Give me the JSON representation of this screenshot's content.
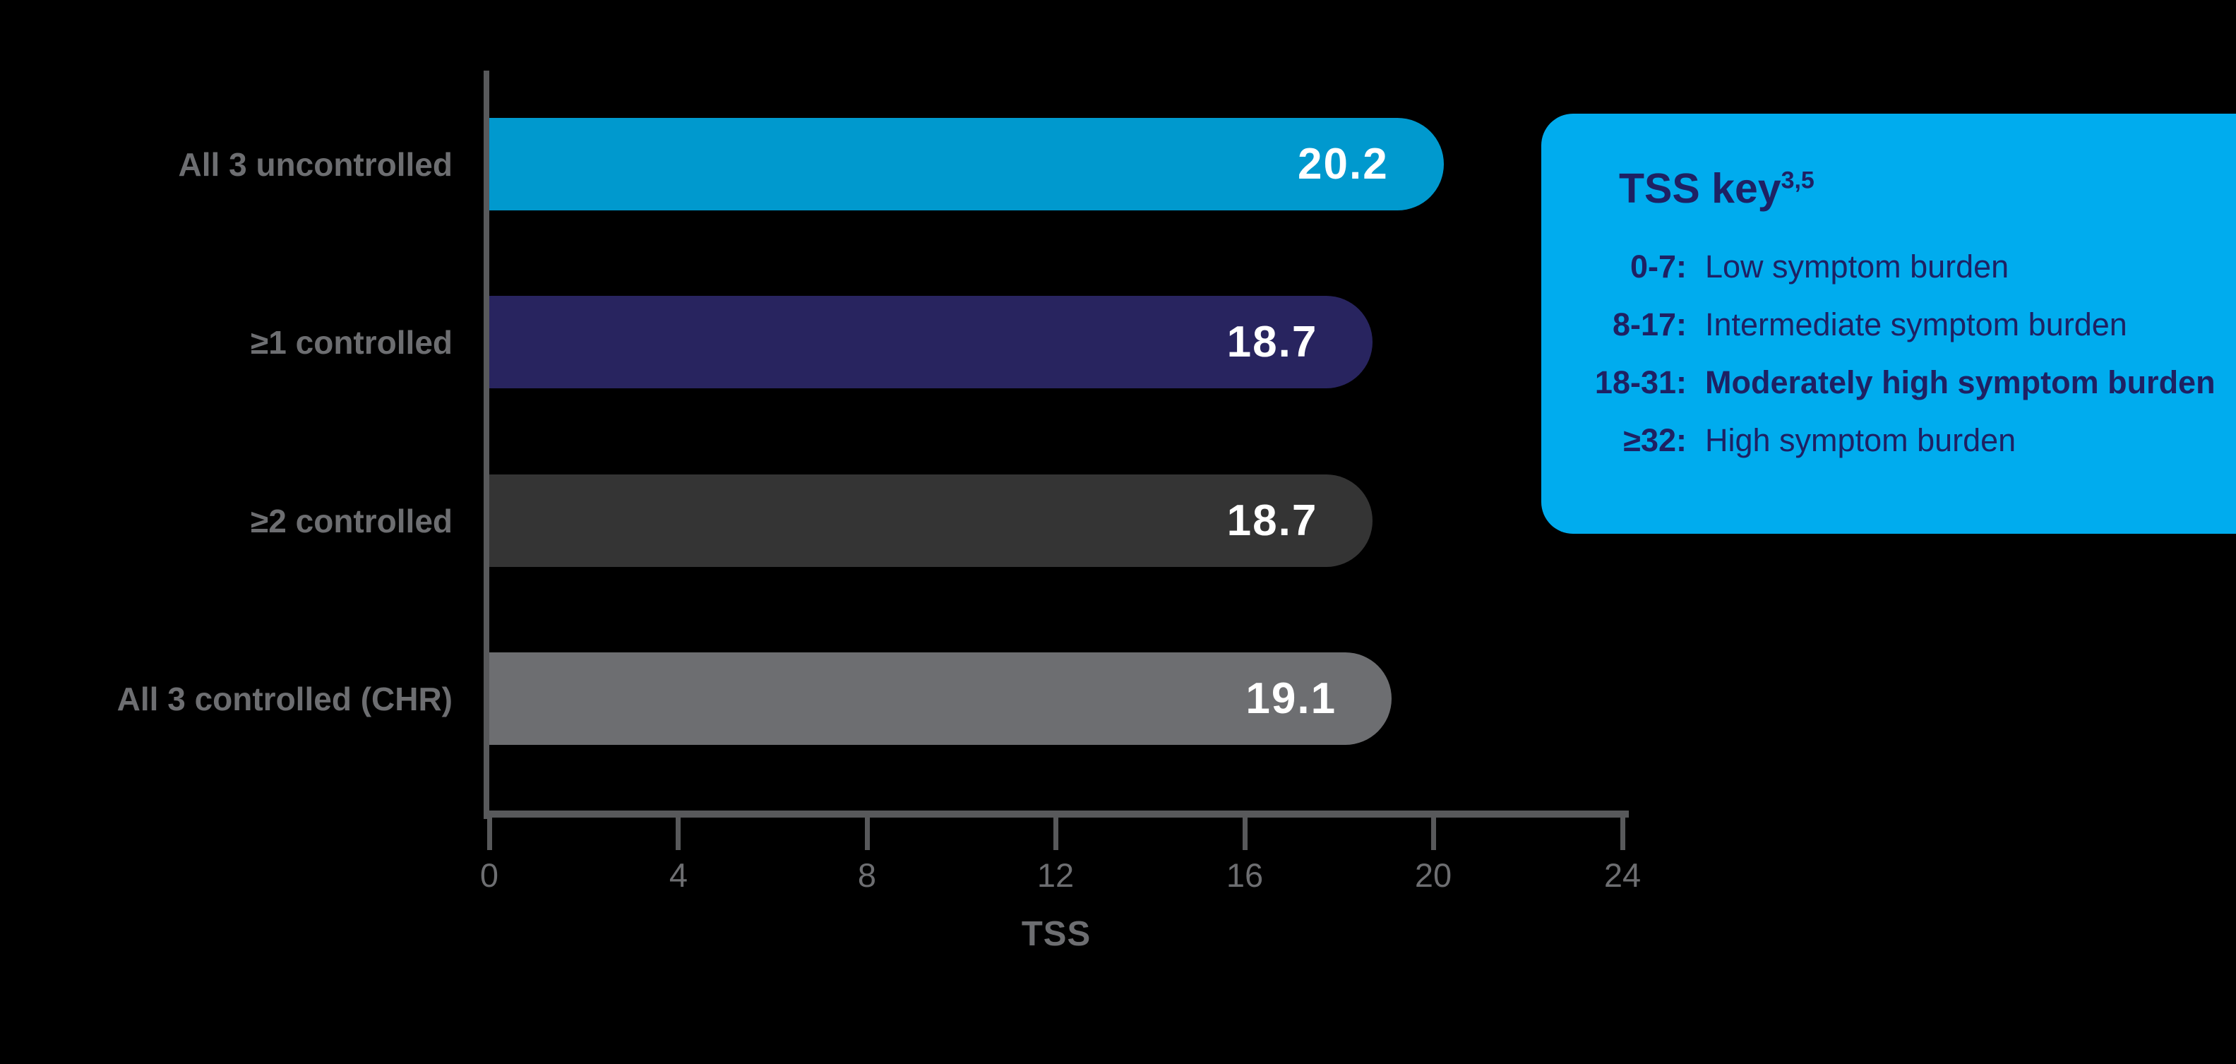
{
  "chart_data": {
    "type": "bar",
    "orientation": "horizontal",
    "xlabel": "TSS",
    "xlim": [
      0,
      24
    ],
    "x_ticks": [
      "0",
      "4",
      "8",
      "12",
      "16",
      "20",
      "24"
    ],
    "grid": false,
    "bars": [
      {
        "label": "All 3 uncontrolled",
        "value": 20.2,
        "value_label": "20.2",
        "color": "#0099CE"
      },
      {
        "label": "≥1 controlled",
        "value": 18.7,
        "value_label": "18.7",
        "color": "#28245F"
      },
      {
        "label": "≥2 controlled",
        "value": 18.7,
        "value_label": "18.7",
        "color": "#343434"
      },
      {
        "label": "All 3 controlled (CHR)",
        "value": 19.1,
        "value_label": "19.1",
        "color": "#6D6E71"
      }
    ]
  },
  "legend": {
    "title": "TSS key",
    "title_superscript": "3,5",
    "background": "#00ACEE",
    "text_color": "#1E2163",
    "items": [
      {
        "range": "0-7:",
        "description": "Low symptom burden",
        "bold": false
      },
      {
        "range": "8-17:",
        "description": "Intermediate symptom burden",
        "bold": false
      },
      {
        "range": "18-31:",
        "description": "Moderately high symptom burden",
        "bold": true
      },
      {
        "range": "≥32:",
        "description": "High symptom burden",
        "bold": false
      }
    ]
  },
  "colors": {
    "background": "#000000",
    "axis": "#58595B",
    "label_gray": "#6D6E71",
    "value_text": "#FFFFFF"
  }
}
